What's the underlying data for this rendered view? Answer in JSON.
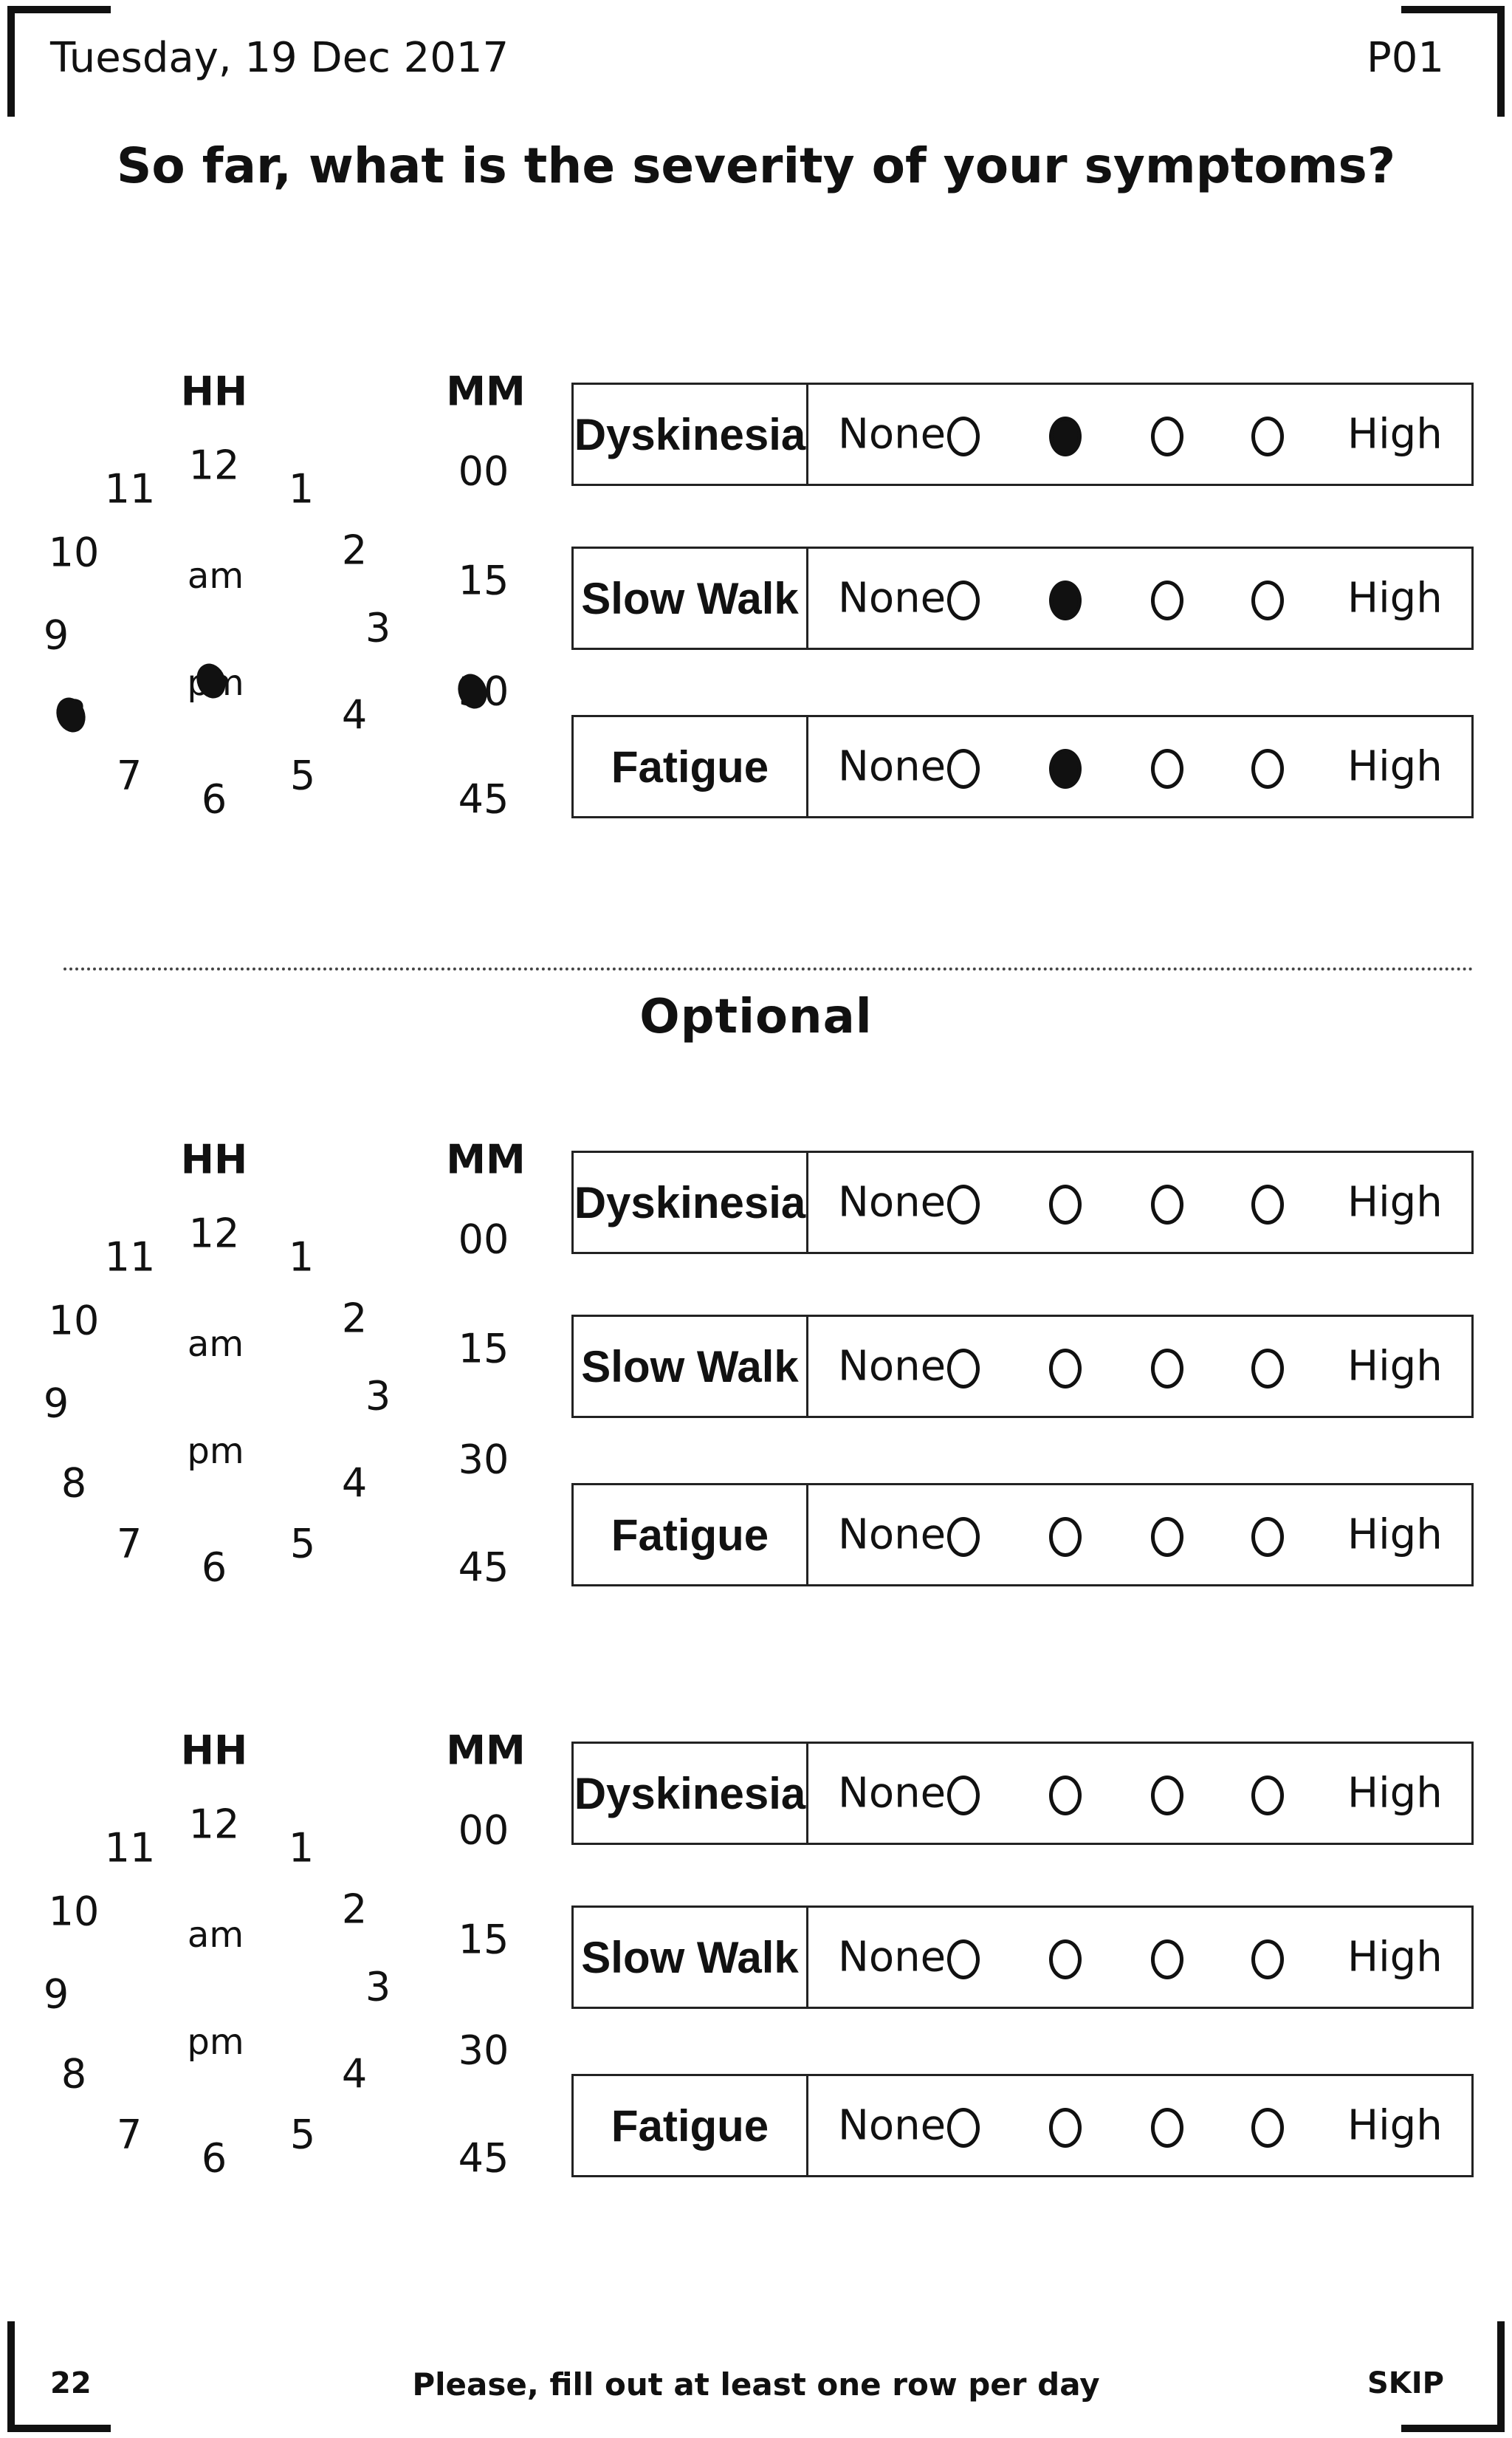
{
  "header": {
    "date": "Tuesday, 19 Dec 2017",
    "page_id": "P01"
  },
  "question": "So far, what is the severity of your symptoms?",
  "optional_label": "Optional",
  "time_picker": {
    "hour_label": "HH",
    "minute_label": "MM",
    "hours": [
      "12",
      "1",
      "2",
      "3",
      "4",
      "5",
      "6",
      "7",
      "8",
      "9",
      "10",
      "11"
    ],
    "am": "am",
    "pm": "pm",
    "minutes": [
      "00",
      "15",
      "30",
      "45"
    ]
  },
  "scale": {
    "low": "None",
    "high": "High",
    "options": 4
  },
  "blocks": [
    {
      "section": "main",
      "marked_hour": "8",
      "marked_ampm": "pm",
      "marked_minute": "30",
      "rows": [
        {
          "symptom": "Dyskinesia",
          "selected": 2
        },
        {
          "symptom": "Slow Walk",
          "selected": 2
        },
        {
          "symptom": "Fatigue",
          "selected": 2
        }
      ]
    },
    {
      "section": "optional",
      "rows": [
        {
          "symptom": "Dyskinesia",
          "selected": null
        },
        {
          "symptom": "Slow Walk",
          "selected": null
        },
        {
          "symptom": "Fatigue",
          "selected": null
        }
      ]
    },
    {
      "section": "optional",
      "rows": [
        {
          "symptom": "Dyskinesia",
          "selected": null
        },
        {
          "symptom": "Slow Walk",
          "selected": null
        },
        {
          "symptom": "Fatigue",
          "selected": null
        }
      ]
    }
  ],
  "footer": {
    "page_number": "22",
    "instruction": "Please, fill out at least one row per day",
    "skip": "SKIP"
  }
}
